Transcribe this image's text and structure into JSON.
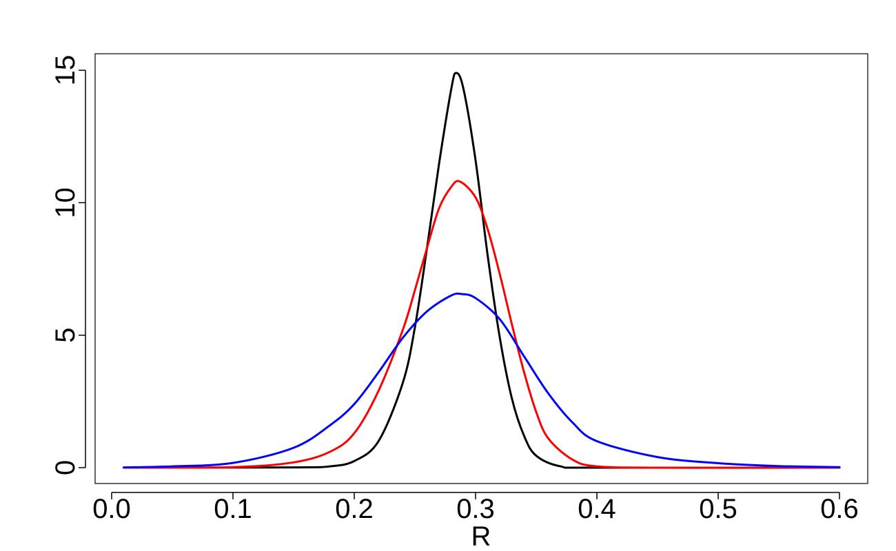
{
  "chart_data": {
    "type": "line",
    "title": "",
    "xlabel": "R",
    "ylabel": "",
    "xlim": [
      0.0,
      0.6
    ],
    "ylim": [
      0,
      15
    ],
    "x_ticks": [
      0.0,
      0.1,
      0.2,
      0.3,
      0.4,
      0.5,
      0.6
    ],
    "x_tick_labels": [
      "0.0",
      "0.1",
      "0.2",
      "0.3",
      "0.4",
      "0.5",
      "0.6"
    ],
    "y_ticks": [
      0,
      5,
      10,
      15
    ],
    "y_tick_labels": [
      "0",
      "5",
      "10",
      "15"
    ],
    "grid": false,
    "legend": "none",
    "series": [
      {
        "color": "#000000",
        "x": [
          0.01,
          0.15,
          0.18,
          0.2,
          0.22,
          0.24,
          0.25,
          0.26,
          0.27,
          0.28,
          0.284,
          0.29,
          0.3,
          0.31,
          0.32,
          0.33,
          0.34,
          0.35,
          0.37,
          0.4,
          0.6
        ],
        "y": [
          0,
          0.01,
          0.05,
          0.25,
          1.0,
          3.2,
          5.3,
          8.3,
          11.5,
          14.3,
          14.9,
          14.3,
          11.6,
          8.0,
          4.9,
          2.6,
          1.2,
          0.45,
          0.05,
          0.0,
          0
        ]
      },
      {
        "color": "#ff0000",
        "x": [
          0.01,
          0.1,
          0.15,
          0.18,
          0.2,
          0.22,
          0.24,
          0.25,
          0.26,
          0.27,
          0.28,
          0.287,
          0.3,
          0.31,
          0.32,
          0.33,
          0.34,
          0.35,
          0.36,
          0.38,
          0.4,
          0.45,
          0.6
        ],
        "y": [
          0,
          0.02,
          0.2,
          0.6,
          1.3,
          2.9,
          5.2,
          6.7,
          8.3,
          9.8,
          10.6,
          10.8,
          10.2,
          9.0,
          7.3,
          5.4,
          3.6,
          2.1,
          1.1,
          0.3,
          0.05,
          0.0,
          0
        ]
      },
      {
        "color": "#0000ff",
        "x": [
          0.01,
          0.05,
          0.1,
          0.15,
          0.18,
          0.2,
          0.22,
          0.24,
          0.26,
          0.28,
          0.289,
          0.3,
          0.32,
          0.34,
          0.36,
          0.38,
          0.4,
          0.45,
          0.5,
          0.55,
          0.6
        ],
        "y": [
          0.01,
          0.05,
          0.18,
          0.75,
          1.6,
          2.4,
          3.6,
          4.9,
          5.9,
          6.5,
          6.55,
          6.4,
          5.6,
          4.2,
          2.8,
          1.7,
          1.0,
          0.4,
          0.17,
          0.06,
          0.02
        ]
      }
    ]
  }
}
